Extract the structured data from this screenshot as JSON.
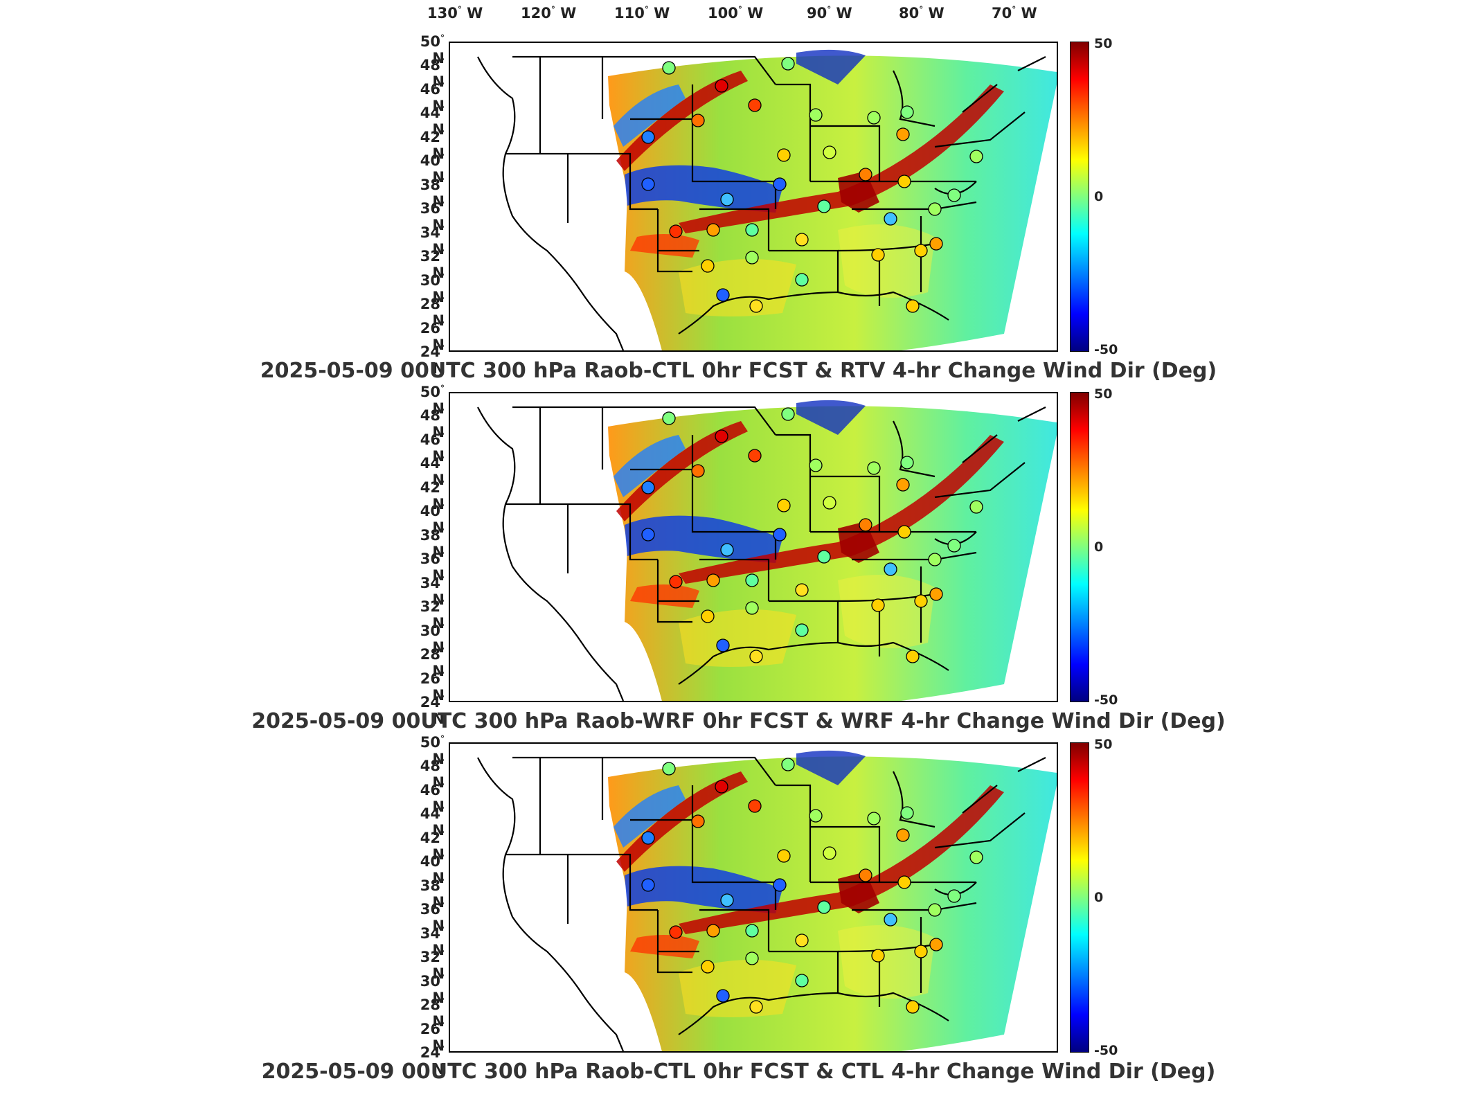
{
  "longitude_labels": [
    {
      "deg": "130",
      "hem": "W"
    },
    {
      "deg": "120",
      "hem": "W"
    },
    {
      "deg": "110",
      "hem": "W"
    },
    {
      "deg": "100",
      "hem": "W"
    },
    {
      "deg": "90",
      "hem": "W"
    },
    {
      "deg": "80",
      "hem": "W"
    },
    {
      "deg": "70",
      "hem": "W"
    }
  ],
  "latitude_labels": [
    {
      "deg": "50",
      "hem": "N"
    },
    {
      "deg": "48",
      "hem": "N"
    },
    {
      "deg": "46",
      "hem": "N"
    },
    {
      "deg": "44",
      "hem": "N"
    },
    {
      "deg": "42",
      "hem": "N"
    },
    {
      "deg": "40",
      "hem": "N"
    },
    {
      "deg": "38",
      "hem": "N"
    },
    {
      "deg": "36",
      "hem": "N"
    },
    {
      "deg": "34",
      "hem": "N"
    },
    {
      "deg": "32",
      "hem": "N"
    },
    {
      "deg": "30",
      "hem": "N"
    },
    {
      "deg": "28",
      "hem": "N"
    },
    {
      "deg": "26",
      "hem": "N"
    },
    {
      "deg": "24",
      "hem": "N"
    }
  ],
  "colorbar": {
    "max": "50",
    "mid": "0",
    "min": "-50"
  },
  "panels": [
    {
      "title": "2025-05-09 00UTC 300 hPa Raob-CTL 0hr FCST & RTV 4-hr Change Wind Dir (Deg)"
    },
    {
      "title": "2025-05-09 00UTC 300 hPa Raob-WRF 0hr FCST & WRF 4-hr Change Wind Dir (Deg)"
    },
    {
      "title": "2025-05-09 00UTC 300 hPa Raob-CTL 0hr FCST & CTL 4-hr Change Wind Dir (Deg)"
    }
  ],
  "colors": {
    "max_red": "#800000",
    "zero_green": "#80ff80",
    "min_blue": "#000080"
  }
}
